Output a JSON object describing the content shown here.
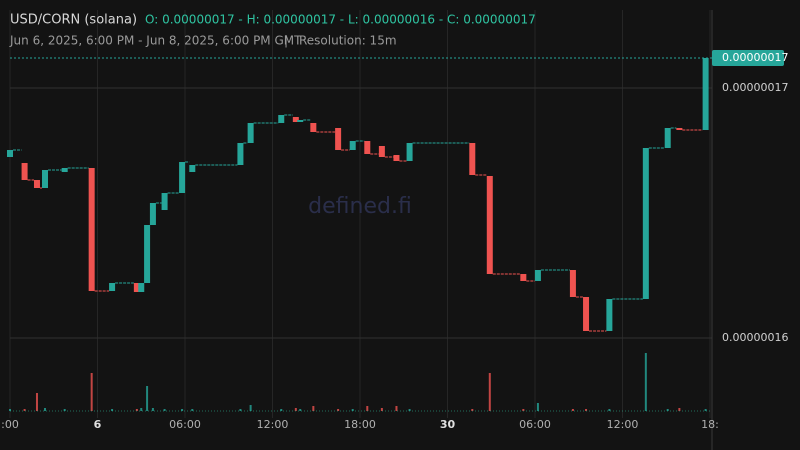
{
  "header": {
    "symbol": "USD/CORN (solana)",
    "ohlc": "O: 0.00000017 - H: 0.00000017 - L: 0.00000016 - C: 0.00000017",
    "range": "Jun 6, 2025, 6:00 PM - Jun 8, 2025, 6:00 PM GMT",
    "separator": "|",
    "resolution": "Resolution: 15m"
  },
  "watermark": "defined.fi",
  "chart_data": {
    "type": "candlestick",
    "up_color": "#26a69a",
    "down_color": "#ef5350",
    "x": [
      0,
      1.0,
      1.85,
      2.4,
      3.75,
      5.6,
      7.0,
      8.7,
      9.0,
      9.4,
      9.8,
      10.6,
      11.8,
      12.5,
      15.8,
      16.5,
      18.6,
      19.6,
      19.9,
      20.8,
      22.5,
      23.5,
      24.5,
      25.5,
      26.5,
      27.4,
      31.7,
      32.9,
      35.2,
      36.2,
      38.6,
      39.5,
      41.1,
      43.6,
      45.1,
      45.9,
      47.7
    ],
    "open": [
      1.6724e-07,
      1.67e-07,
      1.6632e-07,
      1.66e-07,
      1.6664e-07,
      1.668e-07,
      1.6188e-07,
      1.622e-07,
      1.6184e-07,
      1.622e-07,
      1.6452e-07,
      1.6512e-07,
      1.658e-07,
      1.6664e-07,
      1.6692e-07,
      1.678e-07,
      1.686e-07,
      1.6884e-07,
      1.6864e-07,
      1.686e-07,
      1.684e-07,
      1.6752e-07,
      1.6788e-07,
      1.6768e-07,
      1.6732e-07,
      1.6708e-07,
      1.678e-07,
      1.6648e-07,
      1.6256e-07,
      1.6228e-07,
      1.6272e-07,
      1.6164e-07,
      1.6028e-07,
      1.6156e-07,
      1.676e-07,
      1.684e-07,
      1.6832e-07
    ],
    "close": [
      1.6752e-07,
      1.6632e-07,
      1.66e-07,
      1.6672e-07,
      1.668e-07,
      1.6188e-07,
      1.622e-07,
      1.6184e-07,
      1.622e-07,
      1.6452e-07,
      1.654e-07,
      1.658e-07,
      1.6704e-07,
      1.6692e-07,
      1.678e-07,
      1.686e-07,
      1.6892e-07,
      1.6864e-07,
      1.6872e-07,
      1.6824e-07,
      1.6752e-07,
      1.6788e-07,
      1.6736e-07,
      1.6724e-07,
      1.6708e-07,
      1.678e-07,
      1.6652e-07,
      1.6256e-07,
      1.6228e-07,
      1.6272e-07,
      1.6164e-07,
      1.6028e-07,
      1.6156e-07,
      1.676e-07,
      1.684e-07,
      1.6832e-07,
      1.712e-07
    ],
    "volume": [
      2,
      2,
      18,
      3,
      2,
      38,
      2,
      2,
      3,
      25,
      3,
      2,
      2,
      2,
      2,
      6,
      2,
      3,
      2,
      5,
      2,
      2,
      5,
      3,
      5,
      2,
      2,
      38,
      2,
      8,
      2,
      2,
      2,
      58,
      2,
      3,
      2
    ],
    "last_price": 1.712e-07,
    "last_price_label": "0.00000017",
    "xlim": [
      0,
      48
    ],
    "xticks": [
      {
        "value": 0,
        "label": ":00"
      },
      6,
      {
        "value": 12,
        "label": "06:00"
      },
      {
        "value": 18,
        "label": "12:00"
      },
      {
        "value": 24,
        "label": "18:00"
      },
      30,
      {
        "value": 36,
        "label": "06:00"
      },
      {
        "value": 42,
        "label": "12:00"
      },
      {
        "value": 48,
        "label": "18:"
      }
    ],
    "xtick_labels_override": null,
    "ylim": [
      1.5712e-07,
      1.7312e-07
    ],
    "yticks": [
      {
        "value": 1.6e-07,
        "label": "0.00000016"
      },
      {
        "value": 1.7e-07,
        "label": "0.00000017"
      }
    ],
    "grid": true
  }
}
